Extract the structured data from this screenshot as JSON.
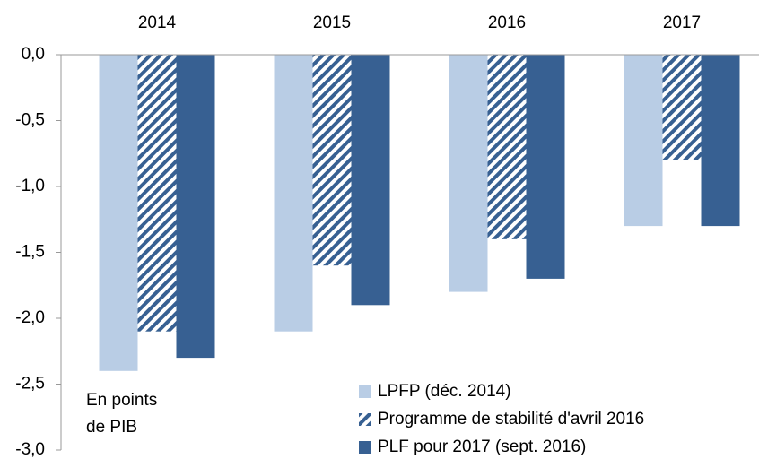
{
  "chart_data": {
    "type": "bar",
    "categories": [
      "2014",
      "2015",
      "2016",
      "2017"
    ],
    "series": [
      {
        "name": "LPFP (déc. 2014)",
        "color": "#b9cde5",
        "values": [
          -2.4,
          -2.1,
          -1.8,
          -1.3
        ]
      },
      {
        "name": "Programme de stabilité d'avril 2016",
        "color": "#376092",
        "pattern": "hatch",
        "values": [
          -2.1,
          -1.6,
          -1.4,
          -0.8
        ]
      },
      {
        "name": "PLF pour 2017 (sept. 2016)",
        "color": "#376092",
        "values": [
          -2.3,
          -1.9,
          -1.7,
          -1.3
        ]
      }
    ],
    "ylim": [
      -3.0,
      0.0
    ],
    "yticks": [
      {
        "value": 0.0,
        "label": "0,0"
      },
      {
        "value": -0.5,
        "label": "-0,5"
      },
      {
        "value": -1.0,
        "label": "-1,0"
      },
      {
        "value": -1.5,
        "label": "-1,5"
      },
      {
        "value": -2.0,
        "label": "-2,0"
      },
      {
        "value": -2.5,
        "label": "-2,5"
      },
      {
        "value": -3.0,
        "label": "-3,0"
      }
    ],
    "annotation": [
      "En points",
      "de PIB"
    ],
    "legend": "lower right",
    "category_axis": "top"
  }
}
